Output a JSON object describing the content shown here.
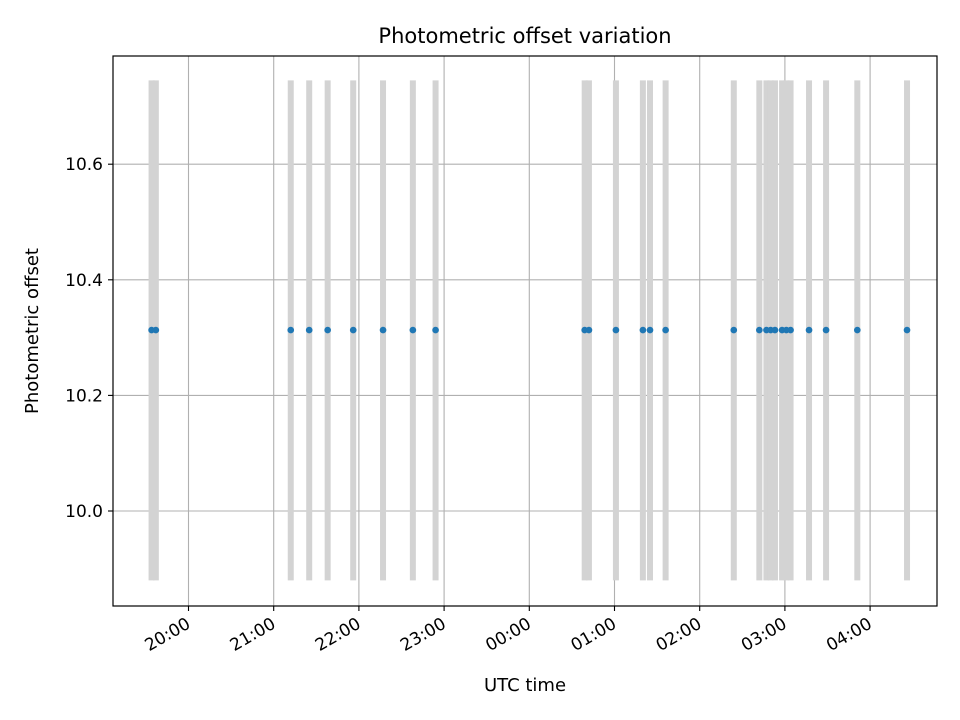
{
  "chart_data": {
    "type": "scatter",
    "title": "Photometric offset variation",
    "xlabel": "UTC time",
    "ylabel": "Photometric offset",
    "x_start": "19:00",
    "x_tick_labels": [
      "20:00",
      "21:00",
      "22:00",
      "23:00",
      "00:00",
      "01:00",
      "02:00",
      "03:00",
      "04:00"
    ],
    "y_ticks": [
      10.0,
      10.2,
      10.4,
      10.6
    ],
    "y_tick_labels": [
      "10.0",
      "10.2",
      "10.4",
      "10.6"
    ],
    "xlim": [
      "19:33",
      "23:57 (+1 day)"
    ],
    "ylim": [
      9.83,
      10.78
    ],
    "grid": true,
    "point_color": "#1f77b4",
    "errorbar_color": "#d3d3d3",
    "errorbar_range": [
      9.88,
      10.745
    ],
    "series": [
      {
        "times": [
          "19:34",
          "19:37",
          "21:12",
          "21:25",
          "21:38",
          "21:56",
          "22:17",
          "22:38",
          "22:54",
          "00:39",
          "00:42",
          "01:01",
          "01:20",
          "01:25",
          "01:36",
          "02:24",
          "02:42",
          "02:47",
          "02:50",
          "02:53",
          "02:58",
          "03:01",
          "03:04",
          "03:17",
          "03:29",
          "03:51",
          "04:26"
        ],
        "values": [
          10.313,
          10.313,
          10.313,
          10.313,
          10.313,
          10.313,
          10.313,
          10.313,
          10.313,
          10.313,
          10.313,
          10.313,
          10.313,
          10.313,
          10.313,
          10.313,
          10.313,
          10.313,
          10.313,
          10.313,
          10.313,
          10.313,
          10.313,
          10.313,
          10.313,
          10.313,
          10.313
        ]
      }
    ]
  }
}
